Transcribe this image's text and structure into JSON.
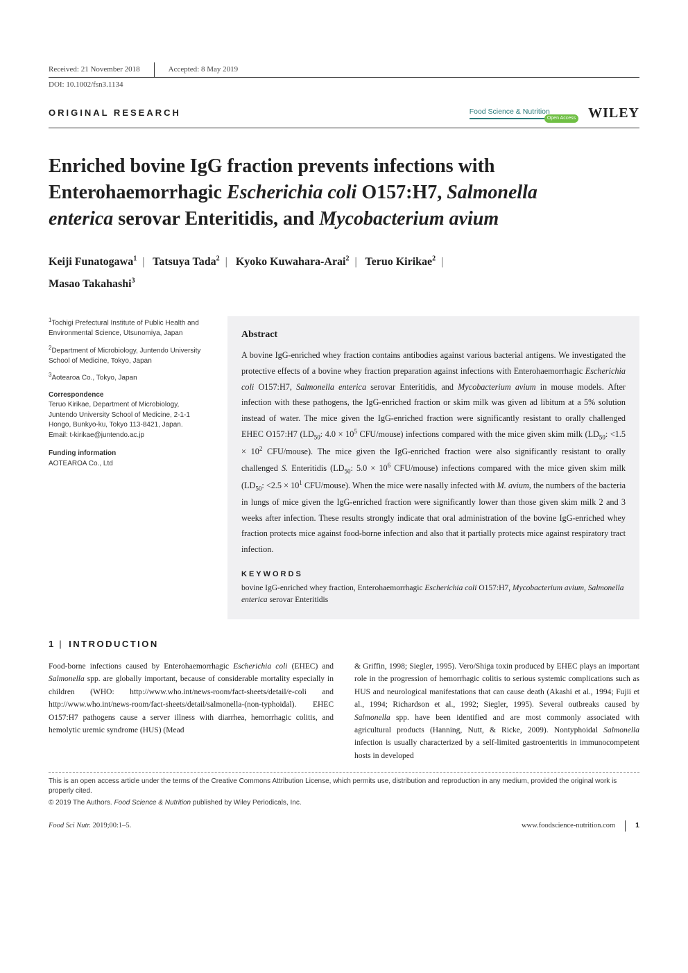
{
  "meta": {
    "received": "Received: 21 November 2018",
    "accepted": "Accepted: 8 May 2019",
    "doi": "DOI: 10.1002/fsn3.1134"
  },
  "header": {
    "article_type": "ORIGINAL RESEARCH",
    "journal": "Food Science & Nutrition",
    "oa": "Open Access",
    "publisher": "WILEY"
  },
  "title": {
    "l1": "Enriched bovine IgG fraction prevents infections with",
    "l2a": "Enterohaemorrhagic ",
    "l2b": "Escherichia coli",
    "l2c": " O157:H7, ",
    "l2d": "Salmonella",
    "l3a": "enterica",
    "l3b": " serovar Enteritidis, and ",
    "l3c": "Mycobacterium avium"
  },
  "authors": {
    "a1": "Keiji Funatogawa",
    "s1": "1",
    "a2": "Tatsuya Tada",
    "s2": "2",
    "a3": "Kyoko Kuwahara-Arai",
    "s3": "2",
    "a4": "Teruo Kirikae",
    "s4": "2",
    "a5": "Masao Takahashi",
    "s5": "3"
  },
  "affil": {
    "a1s": "1",
    "a1": "Tochigi Prefectural Institute of Public Health and Environmental Science, Utsunomiya, Japan",
    "a2s": "2",
    "a2": "Department of Microbiology, Juntendo University School of Medicine, Tokyo, Japan",
    "a3s": "3",
    "a3": "Aotearoa Co., Tokyo, Japan",
    "corr_head": "Correspondence",
    "corr": "Teruo Kirikae, Department of Microbiology, Juntendo University School of Medicine, 2-1-1 Hongo, Bunkyo-ku, Tokyo 113-8421, Japan.",
    "email": "Email: t-kirikae@juntendo.ac.jp",
    "fund_head": "Funding information",
    "fund": "AOTEAROA Co., Ltd"
  },
  "abstract": {
    "head": "Abstract",
    "p1": "A bovine IgG-enriched whey fraction contains antibodies against various bacterial antigens. We investigated the protective effects of a bovine whey fraction preparation against infections with Enterohaemorrhagic ",
    "p1i1": "Escherichia coli",
    "p1b": " O157:H7, ",
    "p1i2": "Salmonella enterica",
    "p1c": " serovar Enteritidis, and ",
    "p1i3": "Mycobacterium avium",
    "p1d": " in mouse models. After infection with these pathogens, the IgG-enriched fraction or skim milk was given ad libitum at a 5% solution instead of water. The mice given the IgG-enriched fraction were significantly resistant to orally challenged EHEC O157:H7 (LD",
    "p1sub1": "50",
    "p1e": ": 4.0 × 10",
    "p1sup1": "5",
    "p1f": " CFU/mouse) infections compared with the mice given skim milk (LD",
    "p1sub2": "50",
    "p1g": ": <1.5 × 10",
    "p1sup2": "2",
    "p1h": " CFU/mouse). The mice given the IgG-enriched fraction were also significantly resistant to orally challenged ",
    "p1i4": "S.",
    "p1i": " Enteritidis (LD",
    "p1sub3": "50",
    "p1j": ": 5.0 × 10",
    "p1sup3": "6",
    "p1k": " CFU/mouse) infections compared with the mice given skim milk (LD",
    "p1sub4": "50",
    "p1l": ": <2.5 × 10",
    "p1sup4": "1",
    "p1m": " CFU/mouse). When the mice were nasally infected with ",
    "p1i5": "M. avium",
    "p1n": ", the numbers of the bacteria in lungs of mice given the IgG-enriched fraction were significantly lower than those given skim milk 2 and 3 weeks after infection. These results strongly indicate that oral administration of the bovine IgG-enriched whey fraction protects mice against food-borne infection and also that it partially protects mice against respiratory tract infection.",
    "kw_head": "KEYWORDS",
    "kw1": "bovine IgG-enriched whey fraction, Enterohaemorrhagic ",
    "kw1i": "Escherichia coli",
    "kw2": " O157:H7, ",
    "kw2i": "Mycobacterium avium",
    "kw3": ", ",
    "kw3i": "Salmonella enterica",
    "kw4": " serovar Enteritidis"
  },
  "intro": {
    "num": "1",
    "head": "INTRODUCTION",
    "col1a": "Food-borne infections caused by Enterohaemorrhagic ",
    "col1i1": "Escherichia coli",
    "col1b": " (EHEC) and ",
    "col1i2": "Salmonella",
    "col1c": " spp. are globally important, because of considerable mortality especially in children (WHO: http://www.who.int/news-room/fact-sheets/detail/e-coli and http://www.who.int/news-room/fact-sheets/detail/salmonella-(non-typhoidal). EHEC O157:H7 pathogens cause a server illness with diarrhea, hemorrhagic colitis, and hemolytic uremic syndrome (HUS) (Mead",
    "col2a": "& Griffin, 1998; Siegler, 1995). Vero/Shiga toxin produced by EHEC plays an important role in the progression of hemorrhagic colitis to serious systemic complications such as HUS and neurological manifestations that can cause death (Akashi et al., 1994; Fujii et al., 1994; Richardson et al., 1992; Siegler, 1995). Several outbreaks caused by ",
    "col2i1": "Salmonella",
    "col2b": " spp. have been identified and are most commonly associated with agricultural products (Hanning, Nutt, & Ricke, 2009). Nontyphoidal ",
    "col2i2": "Salmonella",
    "col2c": " infection is usually characterized by a self-limited gastroenteritis in immunocompetent hosts in developed"
  },
  "license": {
    "l1": "This is an open access article under the terms of the Creative Commons Attribution License, which permits use, distribution and reproduction in any medium, provided the original work is properly cited.",
    "l2a": "© 2019 The Authors. ",
    "l2i": "Food Science & Nutrition",
    "l2b": " published by Wiley Periodicals, Inc."
  },
  "footer": {
    "left_i": "Food Sci Nutr. ",
    "left": "2019;00:1–5.",
    "url": "www.foodscience-nutrition.com",
    "page": "1"
  }
}
